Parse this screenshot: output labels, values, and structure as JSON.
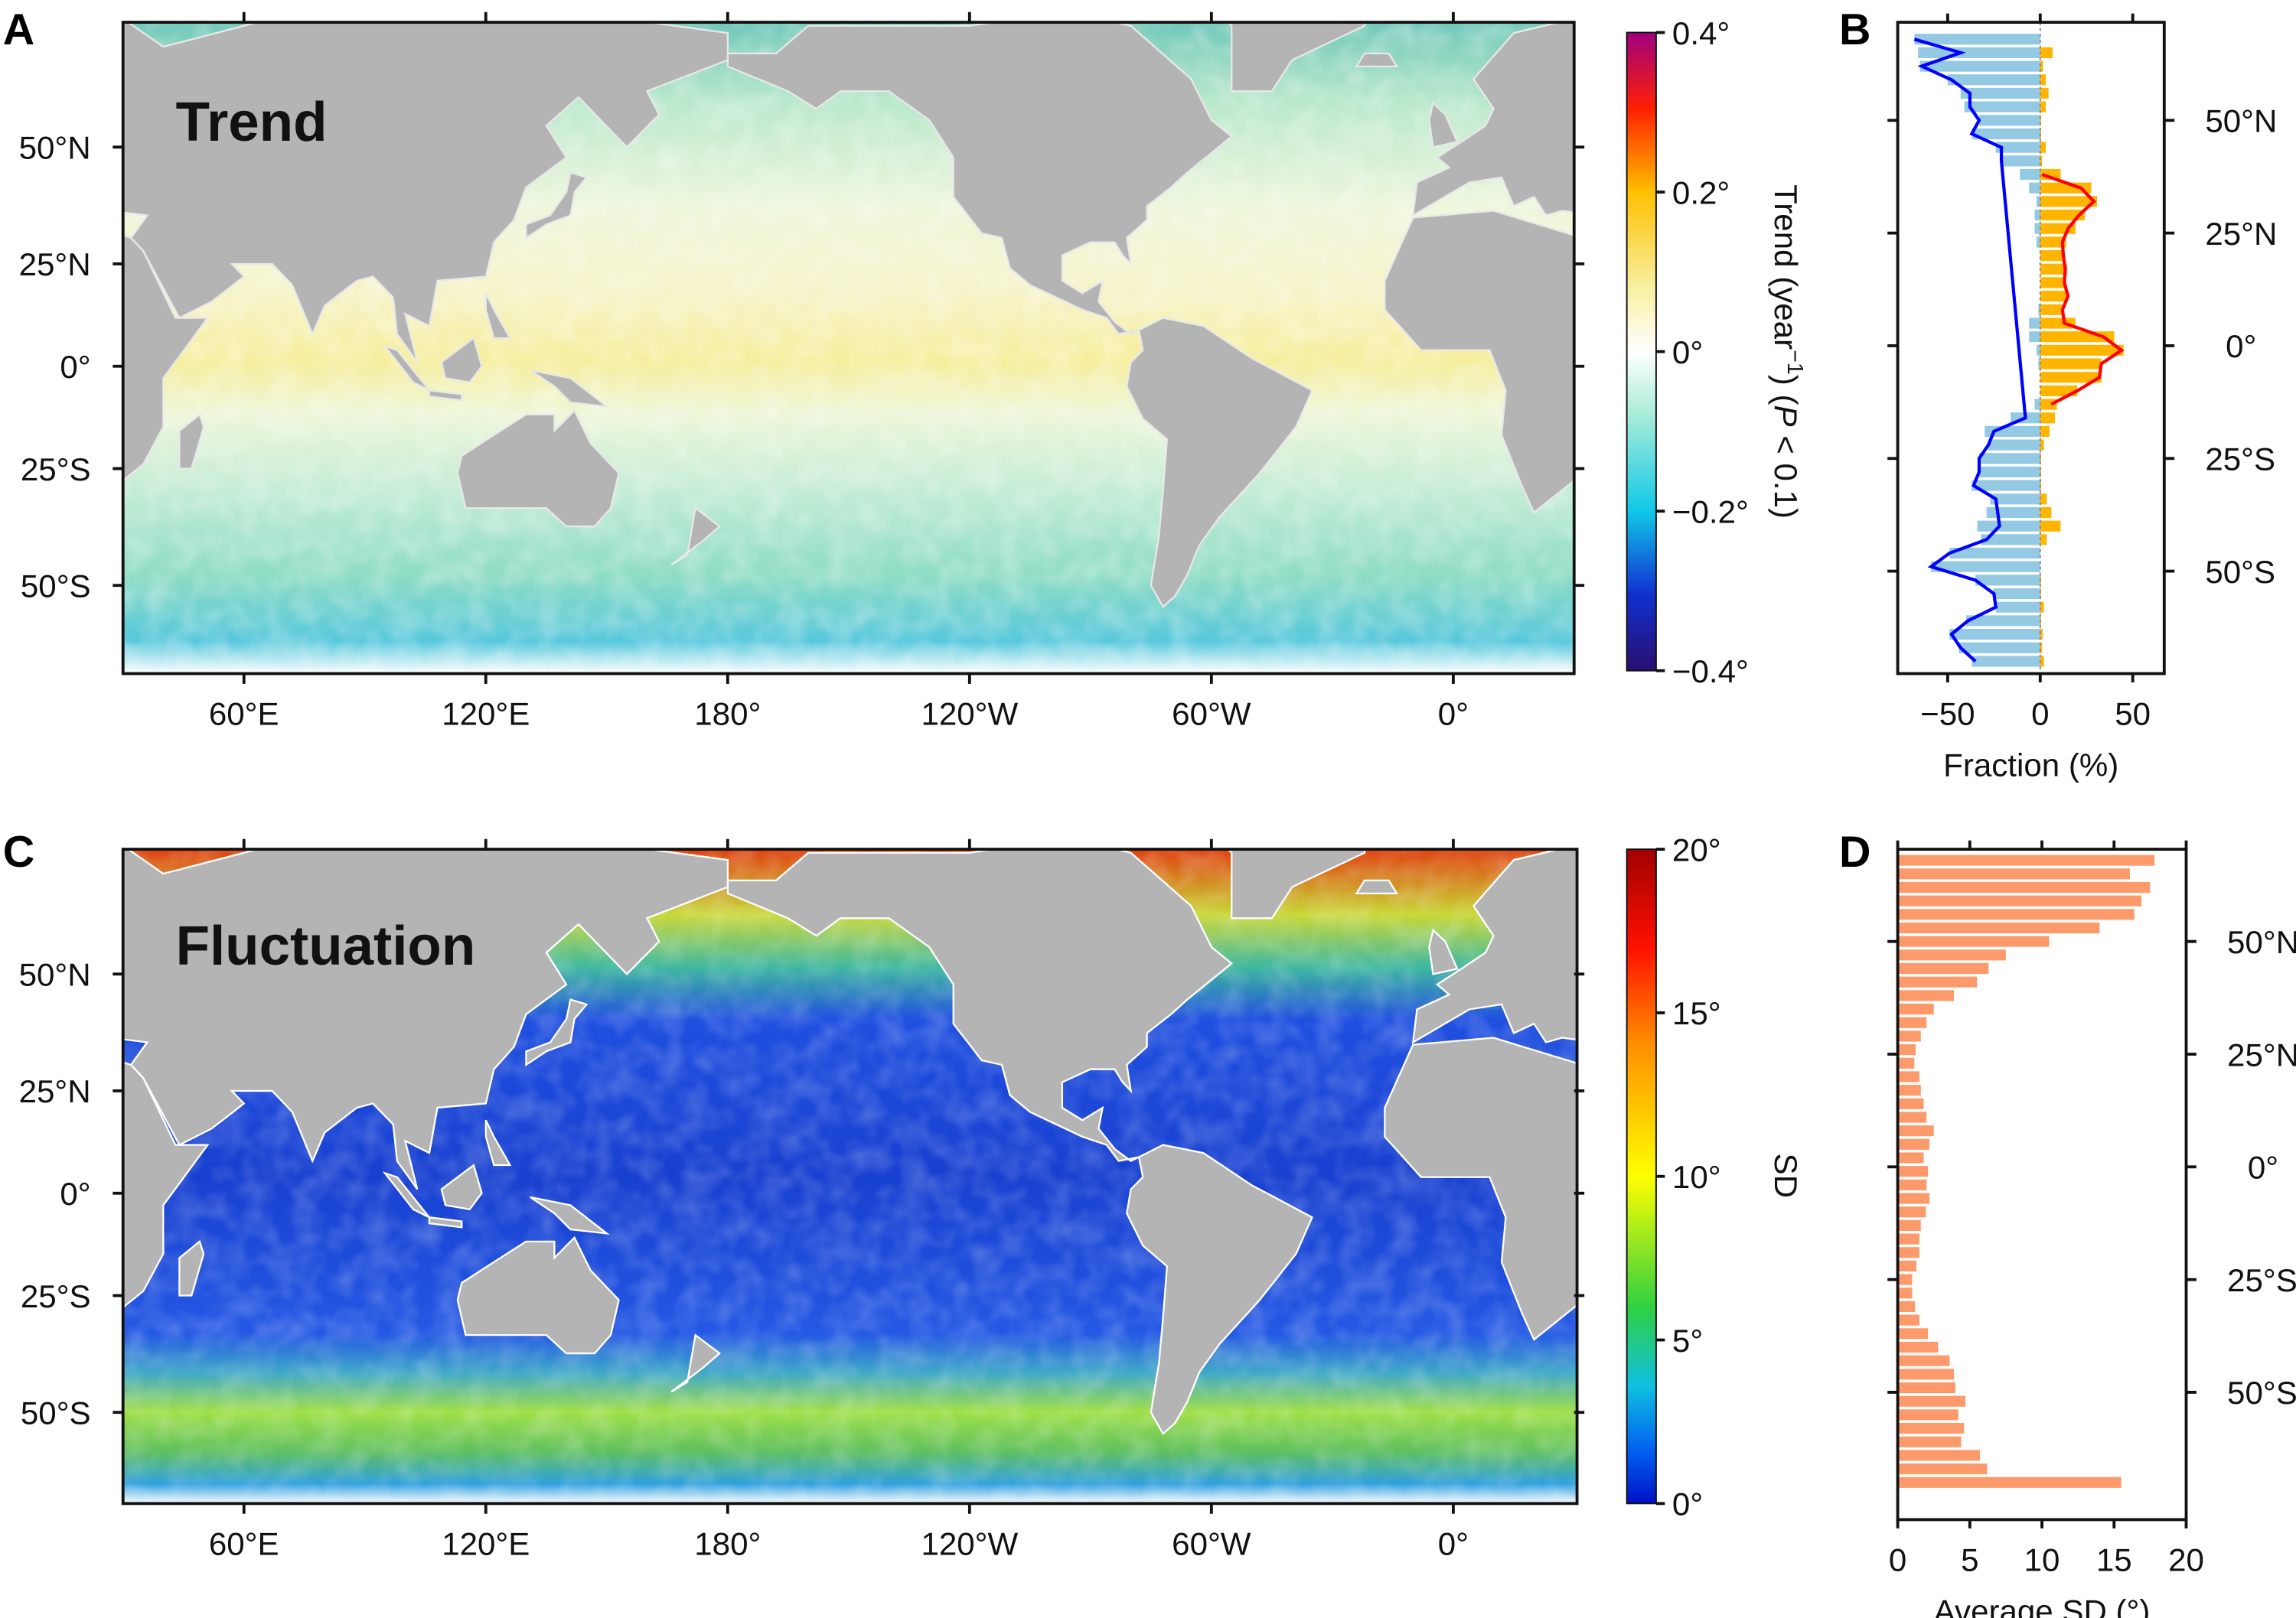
{
  "panels": {
    "a": "A",
    "b": "B",
    "c": "C",
    "d": "D"
  },
  "chart_data": [
    {
      "id": "A",
      "type": "heatmap",
      "title": "Trend",
      "x_ticks": [
        "60°E",
        "120°E",
        "180°",
        "120°W",
        "60°W",
        "0°"
      ],
      "y_ticks": [
        "50°N",
        "25°N",
        "0°",
        "25°S",
        "50°S"
      ],
      "colorbar": {
        "range": [
          -0.4,
          0.4
        ],
        "ticks": [
          "0.4°",
          "0.2°",
          "0°",
          "−0.2°",
          "−0.4°"
        ],
        "label_parts": {
          "a": "Trend (year",
          "sup": "−1",
          "b": ") (",
          "p": "P",
          "c": " < 0.1)"
        },
        "colors": [
          "#2a0f70",
          "#1030d0",
          "#10c8e8",
          "#a8ecd8",
          "#ffffff",
          "#f8f0a0",
          "#ffc000",
          "#ff2000",
          "#a00080"
        ]
      }
    },
    {
      "id": "B",
      "type": "bar",
      "xlabel": "Fraction (%)",
      "x_ticks": [
        "−50",
        "0",
        "50"
      ],
      "x_tick_values": [
        -50,
        0,
        50
      ],
      "xlim": [
        -77,
        67
      ],
      "y_ticks": [
        "50°N",
        "25°N",
        "0°",
        "25°S",
        "50°S"
      ],
      "y_tick_values": [
        50,
        25,
        0,
        -25,
        -50
      ],
      "latitudes_start": 68,
      "latitude_step": -3,
      "series": [
        {
          "name": "negative-fraction",
          "color": "#93c9e3",
          "values": [
            -68,
            -66,
            -65,
            -50,
            -43,
            -41,
            -33,
            -37,
            -24,
            -21.5,
            -11,
            -6,
            -2,
            -3,
            -3,
            -2,
            0,
            0,
            0,
            0,
            -1,
            -6,
            -6,
            -2,
            -1,
            0,
            0,
            -3,
            -16,
            -30,
            -28,
            -33,
            -33,
            -37,
            -27,
            -29,
            -34,
            -32,
            -49,
            -59,
            -35,
            -25.5,
            -24,
            -40,
            -49,
            -44,
            -37
          ]
        },
        {
          "name": "positive-fraction",
          "color": "#ffb400",
          "values": [
            0,
            6.7,
            1.5,
            3,
            4.5,
            3,
            0.5,
            0.5,
            3,
            1,
            11,
            27.6,
            30.7,
            24,
            19,
            14,
            12,
            14.5,
            14,
            15,
            12,
            19,
            40,
            45,
            33,
            33,
            20,
            9,
            8,
            5,
            2,
            0.5,
            0.5,
            0.5,
            3.5,
            6,
            11,
            3.5,
            0,
            0,
            0.5,
            0.5,
            2,
            0.5,
            1.3,
            1,
            2
          ]
        },
        {
          "name": "negative-line",
          "color": "#0000ff",
          "values": [
            -68,
            -43,
            -64,
            -48,
            -38,
            -38,
            -33,
            -37,
            -21,
            -21,
            null,
            null,
            null,
            null,
            null,
            null,
            null,
            null,
            null,
            null,
            null,
            null,
            null,
            null,
            null,
            null,
            null,
            null,
            -8,
            -25,
            -28,
            -33,
            -33,
            -36,
            -24,
            -23,
            -22,
            -29,
            -49,
            -59,
            -35,
            -25,
            -24,
            -39,
            -48,
            -43,
            -35
          ]
        },
        {
          "name": "positive-line",
          "color": "#ff0000",
          "values": [
            null,
            null,
            null,
            null,
            null,
            null,
            null,
            null,
            null,
            null,
            1,
            22,
            29,
            21,
            15,
            12,
            12.5,
            13.5,
            13,
            15,
            12,
            13,
            34,
            44,
            33,
            32,
            20,
            6,
            null,
            null,
            null,
            null,
            null,
            null,
            null,
            null,
            null,
            null,
            null,
            null,
            null,
            null,
            null,
            null,
            null,
            null,
            null
          ]
        }
      ]
    },
    {
      "id": "C",
      "type": "heatmap",
      "title": "Fluctuation",
      "x_ticks": [
        "60°E",
        "120°E",
        "180°",
        "120°W",
        "60°W",
        "0°"
      ],
      "y_ticks": [
        "50°N",
        "25°N",
        "0°",
        "25°S",
        "50°S"
      ],
      "colorbar": {
        "range": [
          0,
          20
        ],
        "ticks": [
          "20°",
          "15°",
          "10°",
          "5°",
          "0°"
        ],
        "label": "SD",
        "colors": [
          "#0010c8",
          "#0060f0",
          "#10c0e0",
          "#30d040",
          "#ffff00",
          "#ff9000",
          "#ff1000",
          "#a00000"
        ]
      }
    },
    {
      "id": "D",
      "type": "bar",
      "xlabel": "Average SD (°)",
      "x_ticks": [
        "0",
        "5",
        "10",
        "15",
        "20"
      ],
      "x_tick_values": [
        0,
        5,
        10,
        15,
        20
      ],
      "xlim": [
        0,
        20
      ],
      "y_ticks": [
        "50°N",
        "25°N",
        "0°",
        "25°S",
        "50°S"
      ],
      "y_tick_values": [
        50,
        25,
        0,
        -25,
        -50
      ],
      "latitudes_start": 68,
      "latitude_step": -3,
      "color": "#fd9a6c",
      "values": [
        17.8,
        16.1,
        17.5,
        16.9,
        16.4,
        14.0,
        10.5,
        7.5,
        6.3,
        5.5,
        3.9,
        2.5,
        2.0,
        1.6,
        1.25,
        1.15,
        1.5,
        1.6,
        1.8,
        2.0,
        2.5,
        2.2,
        1.8,
        2.1,
        2.0,
        2.2,
        1.95,
        1.6,
        1.5,
        1.5,
        1.3,
        1.0,
        1.0,
        1.2,
        1.5,
        2.1,
        2.8,
        3.6,
        3.9,
        4.0,
        4.7,
        4.2,
        4.6,
        4.4,
        5.7,
        6.2,
        15.5
      ]
    }
  ]
}
